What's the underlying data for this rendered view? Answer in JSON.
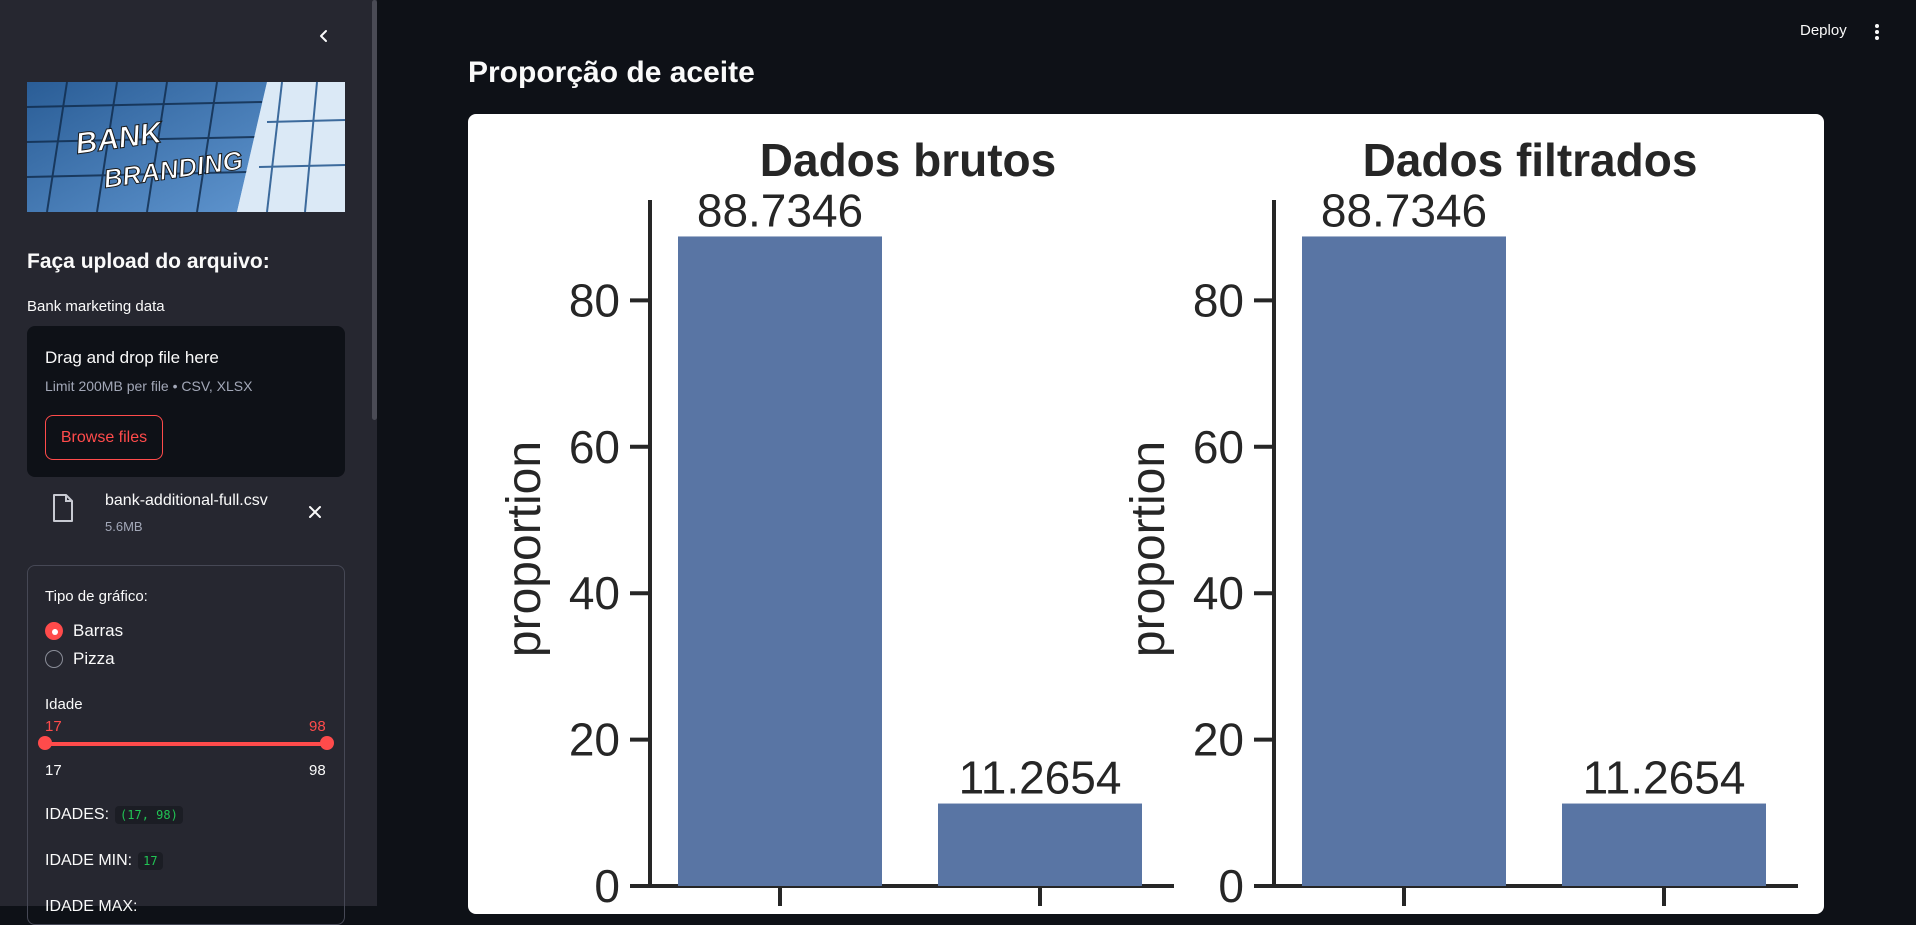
{
  "sidebar": {
    "collapse_icon": "chevron-left-icon",
    "logo": {
      "line1": "BANK",
      "line2": "BRANDING"
    },
    "upload_heading": "Faça upload do arquivo:",
    "uploader": {
      "label": "Bank marketing data",
      "title": "Drag and drop file here",
      "limit": "Limit 200MB per file • CSV, XLSX",
      "browse_label": "Browse files"
    },
    "file": {
      "name": "bank-additional-full.csv",
      "size": "5.6MB"
    },
    "form": {
      "chart_type_label": "Tipo de gráfico:",
      "options": [
        {
          "label": "Barras",
          "selected": true
        },
        {
          "label": "Pizza",
          "selected": false
        }
      ],
      "age_label": "Idade",
      "slider": {
        "value_low": "17",
        "value_high": "98",
        "min": "17",
        "max": "98"
      },
      "idades_label": "IDADES:",
      "idades_value": "(17, 98)",
      "idade_min_label": "IDADE MIN:",
      "idade_min_value": "17",
      "idade_max_label": "IDADE MAX:"
    }
  },
  "header": {
    "deploy_label": "Deploy",
    "menu_icon": "more-vertical-icon"
  },
  "main": {
    "title": "Proporção de aceite"
  },
  "colors": {
    "accent": "#ff4b4b",
    "bar": "#5975a4",
    "sidebar_bg": "#262730",
    "app_bg": "#0e1117"
  },
  "chart_data": [
    {
      "type": "bar",
      "title": "Dados brutos",
      "ylabel": "proportion",
      "xlabel": "",
      "categories": [
        "",
        ""
      ],
      "values": [
        88.7346,
        11.2654
      ],
      "data_labels": [
        "88.7346",
        "11.2654"
      ],
      "yticks": [
        0,
        20,
        40,
        60,
        80
      ],
      "ylim": [
        0,
        93
      ]
    },
    {
      "type": "bar",
      "title": "Dados filtrados",
      "ylabel": "proportion",
      "xlabel": "",
      "categories": [
        "",
        ""
      ],
      "values": [
        88.7346,
        11.2654
      ],
      "data_labels": [
        "88.7346",
        "11.2654"
      ],
      "yticks": [
        0,
        20,
        40,
        60,
        80
      ],
      "ylim": [
        0,
        93
      ]
    }
  ]
}
